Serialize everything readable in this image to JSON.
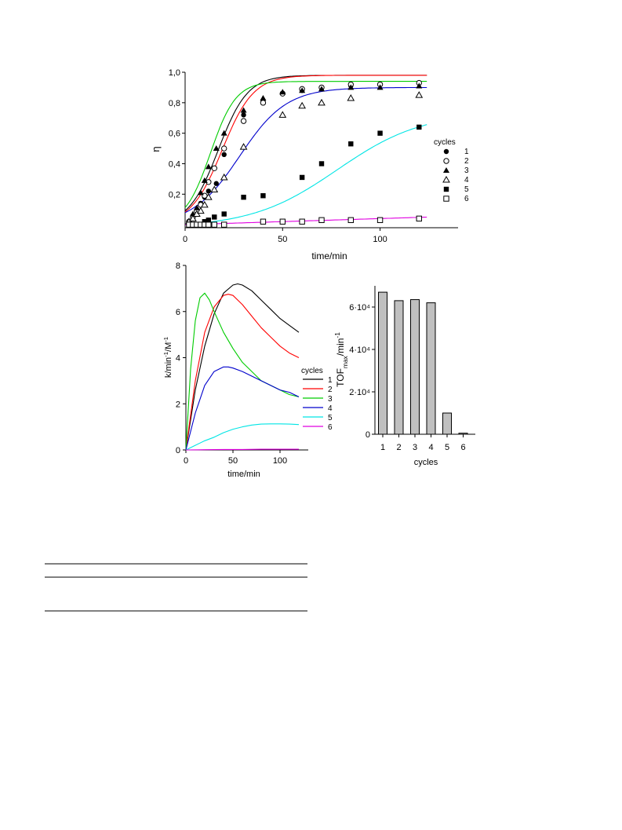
{
  "chart_data": [
    {
      "type": "scatter",
      "xlabel": "time/min",
      "ylabel": "η",
      "xlim": [
        0,
        140
      ],
      "ylim": [
        -0.02,
        1.0
      ],
      "xticks": [
        0,
        50,
        100
      ],
      "yticks": [
        0.2,
        0.4,
        0.6,
        0.8,
        1.0
      ],
      "ytick_labels": [
        "0,2",
        "0,4",
        "0,6",
        "0,8",
        "1,0"
      ],
      "legend_title": "cycles",
      "legend_position": "right",
      "series": [
        {
          "name": "1",
          "marker": "filled-circle",
          "color": "#000000",
          "points": [
            [
              2,
              0.02
            ],
            [
              4,
              0.06
            ],
            [
              6,
              0.1
            ],
            [
              8,
              0.14
            ],
            [
              10,
              0.18
            ],
            [
              12,
              0.22
            ],
            [
              16,
              0.27
            ],
            [
              20,
              0.46
            ],
            [
              30,
              0.72
            ],
            [
              40,
              0.81
            ],
            [
              50,
              0.86
            ],
            [
              60,
              0.88
            ],
            [
              70,
              0.9
            ],
            [
              85,
              0.91
            ],
            [
              100,
              0.92
            ],
            [
              120,
              0.93
            ]
          ]
        },
        {
          "name": "2",
          "marker": "open-circle",
          "color": "#000000",
          "points": [
            [
              2,
              0.02
            ],
            [
              4,
              0.05
            ],
            [
              6,
              0.09
            ],
            [
              8,
              0.13
            ],
            [
              10,
              0.19
            ],
            [
              12,
              0.28
            ],
            [
              15,
              0.37
            ],
            [
              20,
              0.5
            ],
            [
              30,
              0.68
            ],
            [
              40,
              0.8
            ],
            [
              50,
              0.86
            ],
            [
              60,
              0.89
            ],
            [
              70,
              0.9
            ],
            [
              85,
              0.92
            ],
            [
              100,
              0.92
            ],
            [
              120,
              0.93
            ]
          ]
        },
        {
          "name": "3",
          "marker": "filled-triangle",
          "color": "#000000",
          "points": [
            [
              2,
              0.02
            ],
            [
              4,
              0.07
            ],
            [
              6,
              0.11
            ],
            [
              8,
              0.21
            ],
            [
              10,
              0.29
            ],
            [
              12,
              0.38
            ],
            [
              16,
              0.5
            ],
            [
              20,
              0.6
            ],
            [
              30,
              0.75
            ],
            [
              40,
              0.83
            ],
            [
              50,
              0.87
            ],
            [
              60,
              0.88
            ],
            [
              70,
              0.89
            ],
            [
              85,
              0.9
            ],
            [
              100,
              0.9
            ],
            [
              120,
              0.91
            ]
          ]
        },
        {
          "name": "4",
          "marker": "open-triangle",
          "color": "#000000",
          "points": [
            [
              2,
              0.02
            ],
            [
              4,
              0.04
            ],
            [
              6,
              0.07
            ],
            [
              8,
              0.09
            ],
            [
              10,
              0.13
            ],
            [
              12,
              0.18
            ],
            [
              15,
              0.23
            ],
            [
              20,
              0.31
            ],
            [
              30,
              0.51
            ],
            [
              50,
              0.72
            ],
            [
              60,
              0.78
            ],
            [
              70,
              0.8
            ],
            [
              85,
              0.83
            ],
            [
              120,
              0.85
            ]
          ]
        },
        {
          "name": "5",
          "marker": "filled-square",
          "color": "#000000",
          "points": [
            [
              2,
              0.0
            ],
            [
              4,
              0.0
            ],
            [
              6,
              0.0
            ],
            [
              8,
              0.0
            ],
            [
              10,
              0.02
            ],
            [
              12,
              0.03
            ],
            [
              15,
              0.05
            ],
            [
              20,
              0.07
            ],
            [
              30,
              0.18
            ],
            [
              40,
              0.19
            ],
            [
              60,
              0.31
            ],
            [
              70,
              0.4
            ],
            [
              85,
              0.53
            ],
            [
              100,
              0.6
            ],
            [
              120,
              0.64
            ]
          ]
        },
        {
          "name": "6",
          "marker": "open-square",
          "color": "#000000",
          "points": [
            [
              2,
              0.0
            ],
            [
              4,
              0.0
            ],
            [
              6,
              0.0
            ],
            [
              8,
              0.0
            ],
            [
              10,
              0.0
            ],
            [
              12,
              0.0
            ],
            [
              15,
              0.0
            ],
            [
              20,
              0.0
            ],
            [
              40,
              0.02
            ],
            [
              50,
              0.02
            ],
            [
              60,
              0.02
            ],
            [
              70,
              0.03
            ],
            [
              85,
              0.03
            ],
            [
              100,
              0.03
            ],
            [
              120,
              0.04
            ]
          ]
        }
      ],
      "fit_curves": [
        {
          "series": "1",
          "color": "#000000"
        },
        {
          "series": "2",
          "color": "#ff0000"
        },
        {
          "series": "3",
          "color": "#00cc00"
        },
        {
          "series": "4",
          "color": "#0000cc"
        },
        {
          "series": "5",
          "color": "#00e5e5"
        },
        {
          "series": "6",
          "color": "#e000e0"
        }
      ]
    },
    {
      "type": "line",
      "xlabel": "time/min",
      "ylabel": "k/min⁻¹/M⁻¹",
      "xlim": [
        0,
        130
      ],
      "ylim": [
        0,
        8
      ],
      "xticks": [
        0,
        50,
        100
      ],
      "yticks": [
        0,
        2,
        4,
        6,
        8
      ],
      "legend_title": "cycles",
      "legend_position": "lower-right",
      "series": [
        {
          "name": "1",
          "color": "#000000",
          "x": [
            0,
            10,
            20,
            30,
            40,
            50,
            55,
            60,
            70,
            80,
            90,
            100,
            110,
            120
          ],
          "y": [
            0,
            2.6,
            4.5,
            5.9,
            6.8,
            7.15,
            7.2,
            7.15,
            6.9,
            6.5,
            6.1,
            5.7,
            5.4,
            5.1
          ]
        },
        {
          "name": "2",
          "color": "#ff0000",
          "x": [
            0,
            10,
            20,
            30,
            40,
            45,
            50,
            60,
            70,
            80,
            90,
            100,
            110,
            120
          ],
          "y": [
            0,
            3.0,
            5.1,
            6.2,
            6.7,
            6.75,
            6.7,
            6.3,
            5.8,
            5.3,
            4.9,
            4.5,
            4.2,
            4.0
          ]
        },
        {
          "name": "3",
          "color": "#00cc00",
          "x": [
            0,
            5,
            10,
            15,
            20,
            25,
            30,
            40,
            50,
            60,
            70,
            80,
            90,
            100,
            110,
            120
          ],
          "y": [
            0,
            3.5,
            5.6,
            6.6,
            6.8,
            6.5,
            6.0,
            5.1,
            4.4,
            3.8,
            3.4,
            3.0,
            2.8,
            2.6,
            2.4,
            2.3
          ]
        },
        {
          "name": "4",
          "color": "#0000cc",
          "x": [
            0,
            10,
            20,
            30,
            40,
            45,
            50,
            60,
            70,
            80,
            90,
            100,
            110,
            120
          ],
          "y": [
            0,
            1.6,
            2.8,
            3.4,
            3.6,
            3.6,
            3.55,
            3.4,
            3.2,
            3.0,
            2.8,
            2.6,
            2.5,
            2.3
          ]
        },
        {
          "name": "5",
          "color": "#00e5e5",
          "x": [
            0,
            10,
            20,
            30,
            40,
            50,
            60,
            70,
            80,
            90,
            100,
            110,
            120
          ],
          "y": [
            0,
            0.2,
            0.4,
            0.55,
            0.75,
            0.9,
            1.0,
            1.08,
            1.12,
            1.13,
            1.13,
            1.12,
            1.1
          ]
        },
        {
          "name": "6",
          "color": "#e000e0",
          "x": [
            0,
            20,
            40,
            60,
            80,
            100,
            120
          ],
          "y": [
            0,
            0.01,
            0.02,
            0.02,
            0.03,
            0.03,
            0.03
          ]
        }
      ]
    },
    {
      "type": "bar",
      "xlabel": "cycles",
      "ylabel": "TOFmax/min⁻¹",
      "categories": [
        "1",
        "2",
        "3",
        "4",
        "5",
        "6"
      ],
      "values": [
        67000,
        63000,
        63500,
        62000,
        10000,
        500
      ],
      "ylim": [
        0,
        70000
      ],
      "yticks": [
        0,
        20000,
        40000,
        60000
      ],
      "ytick_labels": [
        "0",
        "2·10⁴",
        "4·10⁴",
        "6·10⁴"
      ],
      "bar_color": "#c0c0c0"
    }
  ]
}
